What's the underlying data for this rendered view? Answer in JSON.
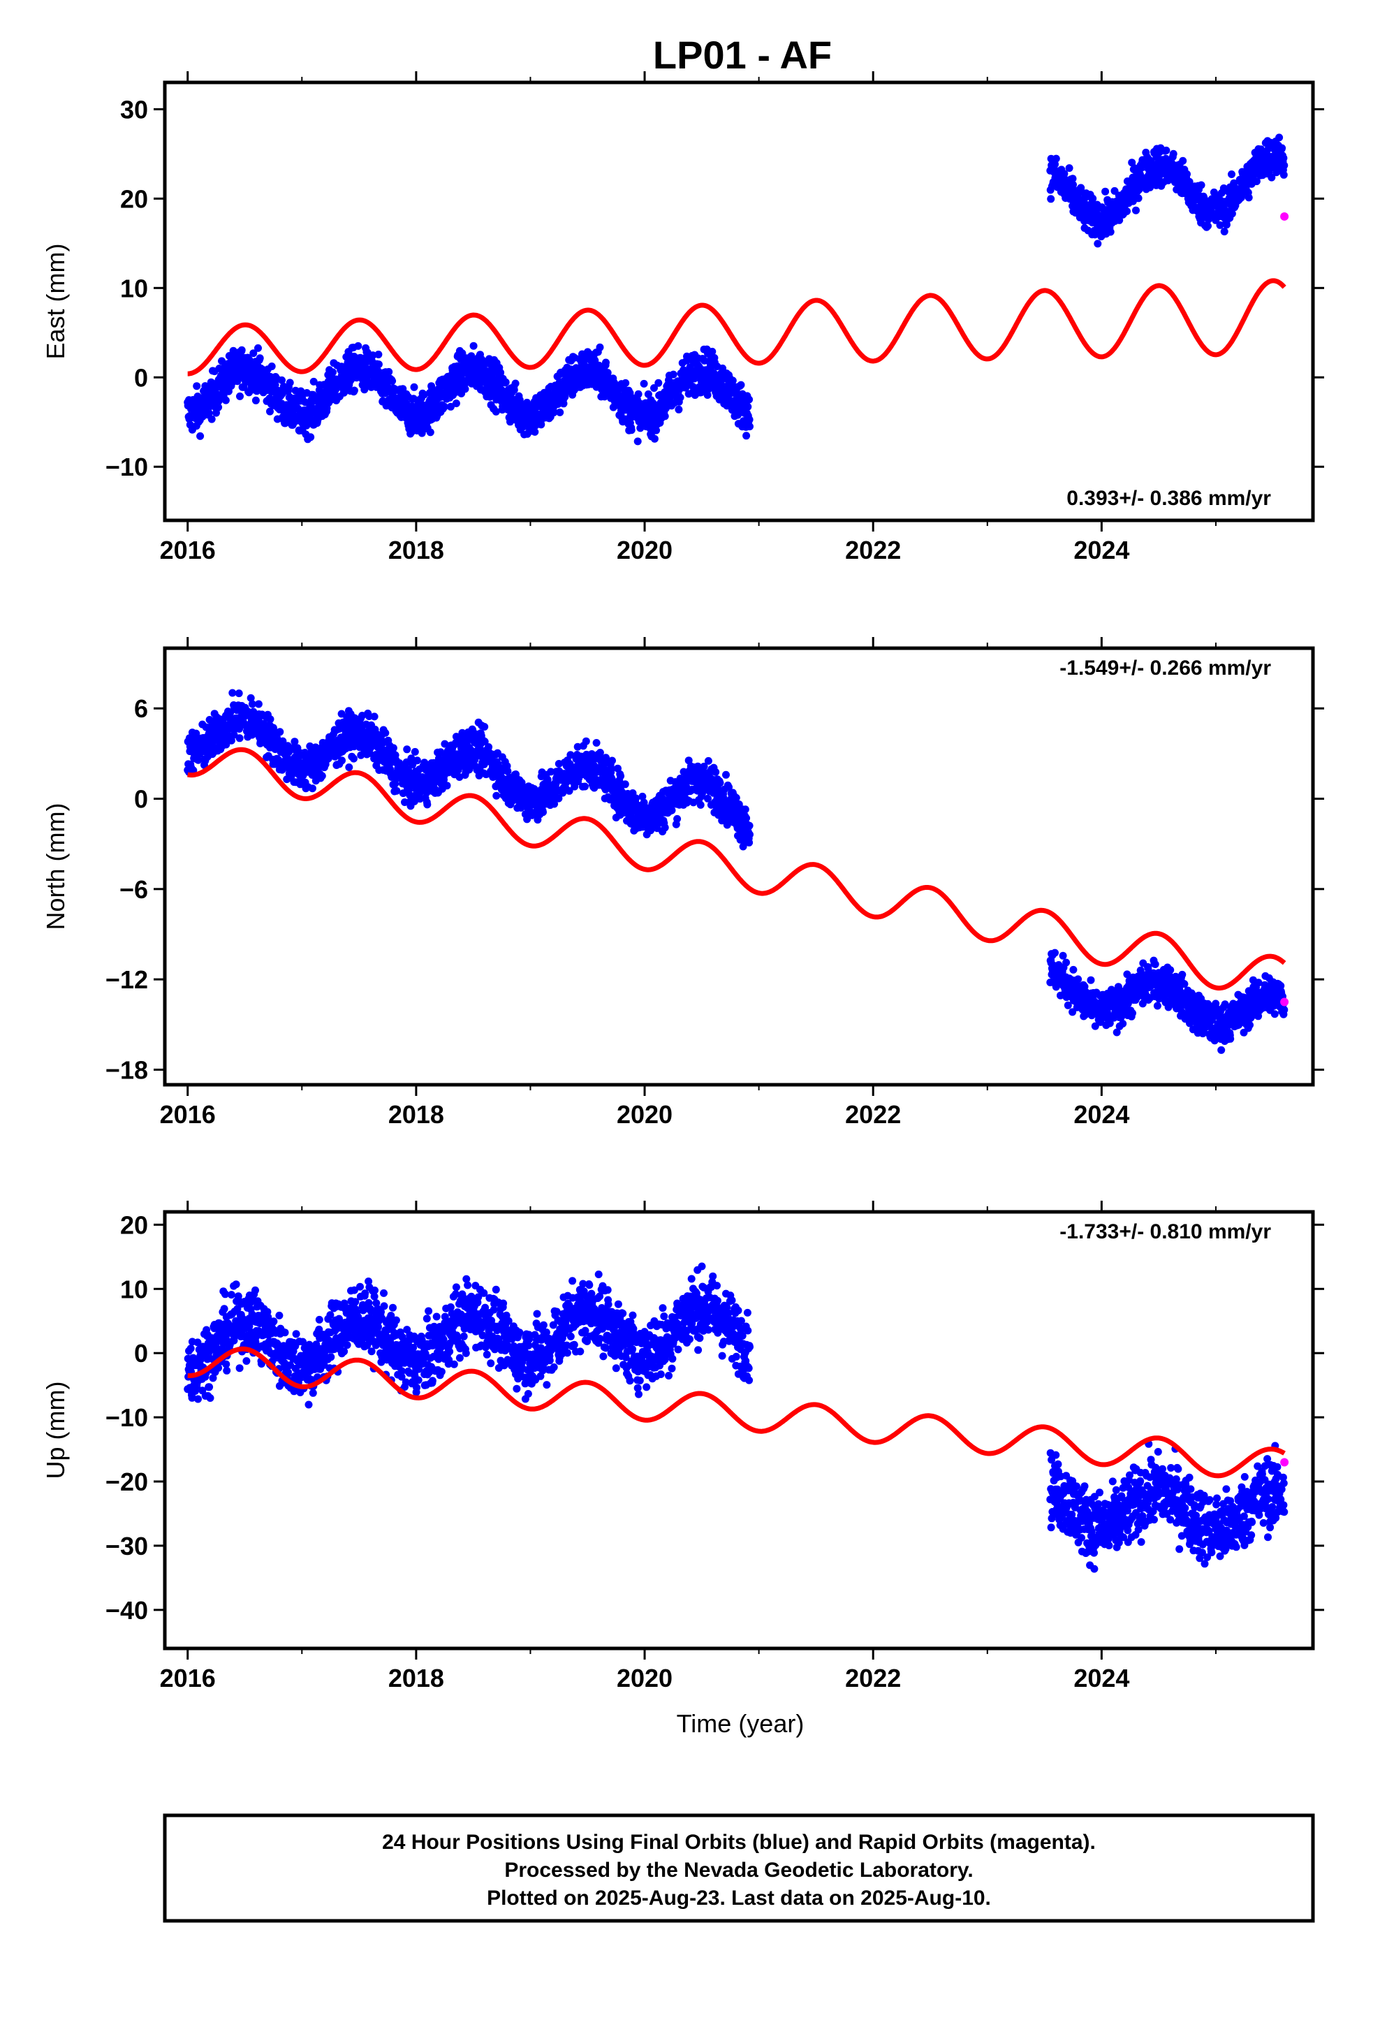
{
  "title": "LP01 - AF",
  "colors": {
    "final": "#0000ff",
    "rapid": "#ff00ff",
    "model": "#ff0000"
  },
  "caption": {
    "line1": "24 Hour Positions Using Final Orbits (blue) and Rapid Orbits (magenta).",
    "line2": "Processed by the Nevada Geodetic Laboratory.",
    "line3": "Plotted on 2025-Aug-23. Last data on 2025-Aug-10."
  },
  "chart_data": [
    {
      "type": "scatter",
      "component": "east",
      "ylabel": "East (mm)",
      "xlabel": "",
      "xlim": [
        2015.8,
        2025.85
      ],
      "ylim": [
        -16,
        33
      ],
      "xticks": [
        2016,
        2018,
        2020,
        2022,
        2024
      ],
      "yticks": [
        -10,
        0,
        10,
        20,
        30
      ],
      "rate_label": "0.393+/- 0.386 mm/yr",
      "rate_position": "bottom-right",
      "segments": [
        {
          "start": 2016.0,
          "end": 2020.92,
          "base_at_start": -1.5,
          "trend": -0.05,
          "amp": 2.5,
          "noise": 2.2
        },
        {
          "start": 2023.55,
          "end": 2025.6,
          "base_at_start": 20.0,
          "trend": 1.0,
          "amp": 2.8,
          "noise": 2.0
        }
      ],
      "model": {
        "start": 2016.0,
        "end": 2025.6,
        "y0": 3.0,
        "trend": 0.393,
        "amp": 2.6,
        "amp_growth": 0.06,
        "phase_peak": 0.5
      },
      "rapid_points": [
        [
          2025.6,
          18.0
        ]
      ]
    },
    {
      "type": "scatter",
      "component": "north",
      "ylabel": "North (mm)",
      "xlabel": "",
      "xlim": [
        2015.8,
        2025.85
      ],
      "ylim": [
        -19,
        10
      ],
      "xticks": [
        2016,
        2018,
        2020,
        2022,
        2024
      ],
      "yticks": [
        -18,
        -12,
        -6,
        0,
        6
      ],
      "rate_label": "-1.549+/- 0.266 mm/yr",
      "rate_position": "top-right",
      "segments": [
        {
          "start": 2016.0,
          "end": 2020.92,
          "base_at_start": 4.5,
          "trend": -1.05,
          "amp": 1.4,
          "noise": 1.3
        },
        {
          "start": 2023.55,
          "end": 2025.6,
          "base_at_start": -12.5,
          "trend": -0.9,
          "amp": 1.2,
          "noise": 1.2
        }
      ],
      "model": {
        "start": 2016.0,
        "end": 2025.6,
        "y0": 2.8,
        "trend": -1.549,
        "amp": 1.2,
        "amp_growth": 0.02,
        "phase_peak": 0.5
      },
      "rapid_points": [
        [
          2025.6,
          -13.5
        ]
      ]
    },
    {
      "type": "scatter",
      "component": "up",
      "ylabel": "Up (mm)",
      "xlabel": "Time (year)",
      "xlim": [
        2015.8,
        2025.85
      ],
      "ylim": [
        -46,
        22
      ],
      "xticks": [
        2016,
        2018,
        2020,
        2022,
        2024
      ],
      "yticks": [
        -40,
        -30,
        -20,
        -10,
        0,
        10,
        20
      ],
      "rate_label": "-1.733+/- 0.810 mm/yr",
      "rate_position": "top-right",
      "segments": [
        {
          "start": 2016.0,
          "end": 2020.92,
          "base_at_start": 1.0,
          "trend": 0.6,
          "amp": 3.5,
          "noise": 4.8
        },
        {
          "start": 2023.55,
          "end": 2025.6,
          "base_at_start": -24.0,
          "trend": -0.4,
          "amp": 3.0,
          "noise": 5.0
        }
      ],
      "model": {
        "start": 2016.0,
        "end": 2025.6,
        "y0": -1.0,
        "trend": -1.733,
        "amp": 2.5,
        "amp_growth": 0.0,
        "phase_peak": 0.5
      },
      "rapid_points": [
        [
          2025.6,
          -17.0
        ]
      ]
    }
  ]
}
